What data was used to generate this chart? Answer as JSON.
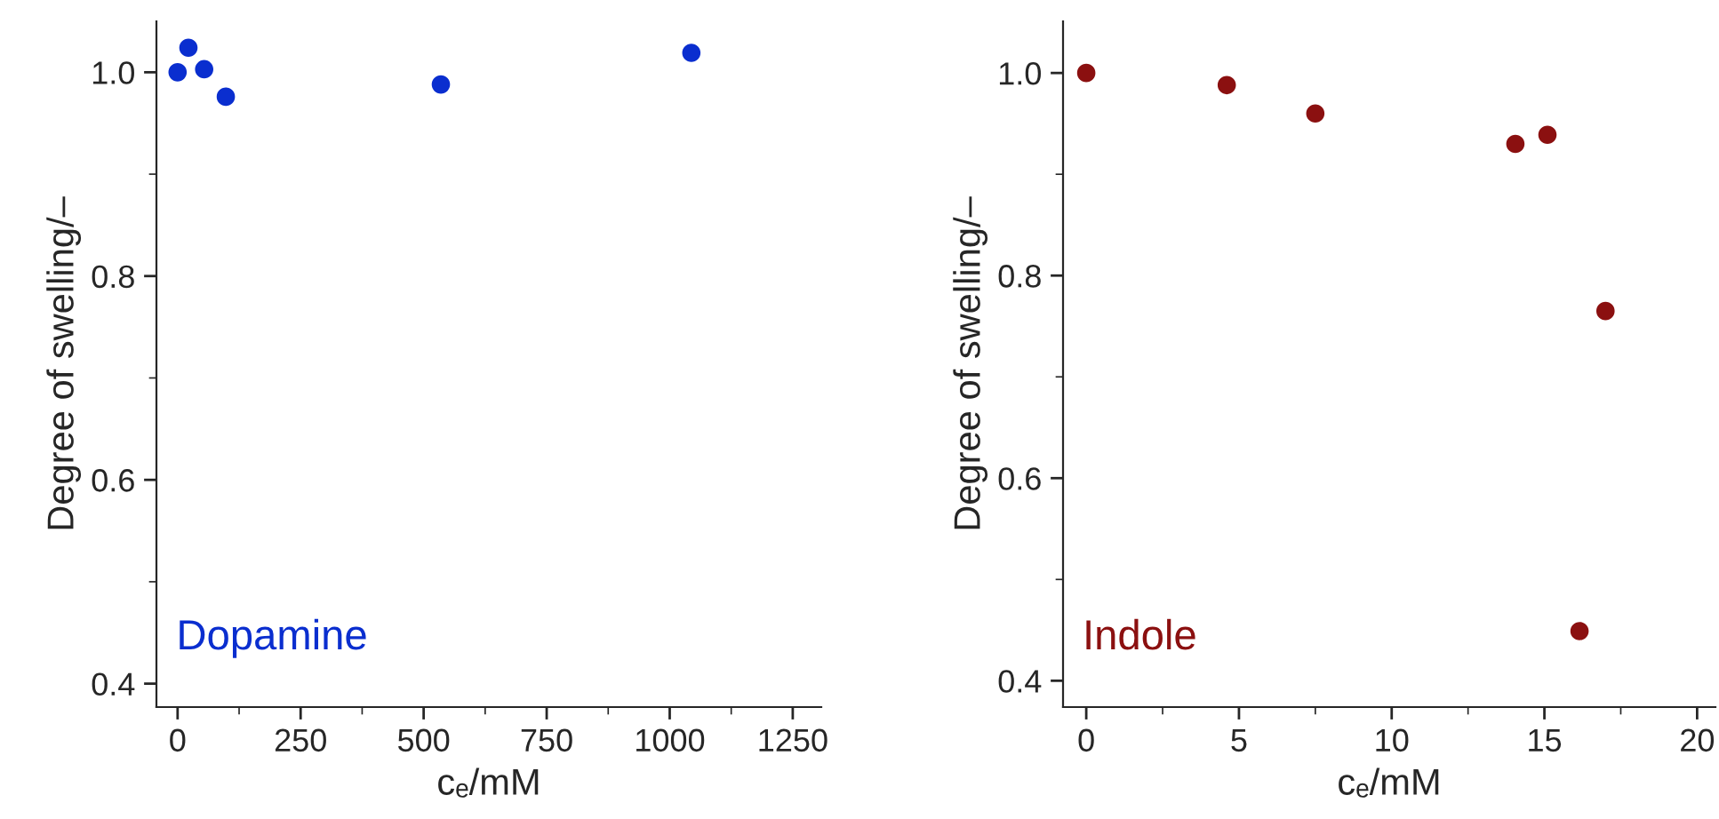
{
  "chart_data": [
    {
      "type": "scatter",
      "xlabel": "cₑ/mM",
      "ylabel": "Degree of swelling/–",
      "series": [
        {
          "name": "Dopamine",
          "color": "#0a2ecf",
          "x": [
            0,
            22,
            54,
            98,
            535,
            1044
          ],
          "values": [
            1.0,
            1.024,
            1.003,
            0.976,
            0.988,
            1.019
          ]
        }
      ],
      "xlim": [
        -43,
        1308
      ],
      "xticks": [
        0,
        250,
        500,
        750,
        1000,
        1250
      ],
      "ylim": [
        0.377,
        1.05
      ],
      "yticks": [
        0.4,
        0.6,
        0.8,
        {
          "value": 1.0,
          "label": "1.0"
        }
      ],
      "marker": "circle",
      "grid": false,
      "legend": "bottom left"
    },
    {
      "type": "scatter",
      "xlabel": "cₑ/mM",
      "ylabel": "Degree of swelling/–",
      "series": [
        {
          "name": "Indole",
          "color": "#8b1010",
          "x": [
            0,
            4.6,
            7.5,
            14.05,
            15.1,
            17.0,
            16.15
          ],
          "values": [
            1.0,
            0.988,
            0.96,
            0.93,
            0.939,
            0.765,
            0.449
          ]
        }
      ],
      "xlim": [
        -0.76,
        20.6
      ],
      "xticks": [
        0,
        5,
        10,
        15,
        20
      ],
      "ylim": [
        0.374,
        1.051
      ],
      "yticks": [
        0.4,
        0.6,
        0.8,
        {
          "value": 1.0,
          "label": "1.0"
        }
      ],
      "marker": "circle",
      "grid": false,
      "legend": "bottom left"
    }
  ]
}
